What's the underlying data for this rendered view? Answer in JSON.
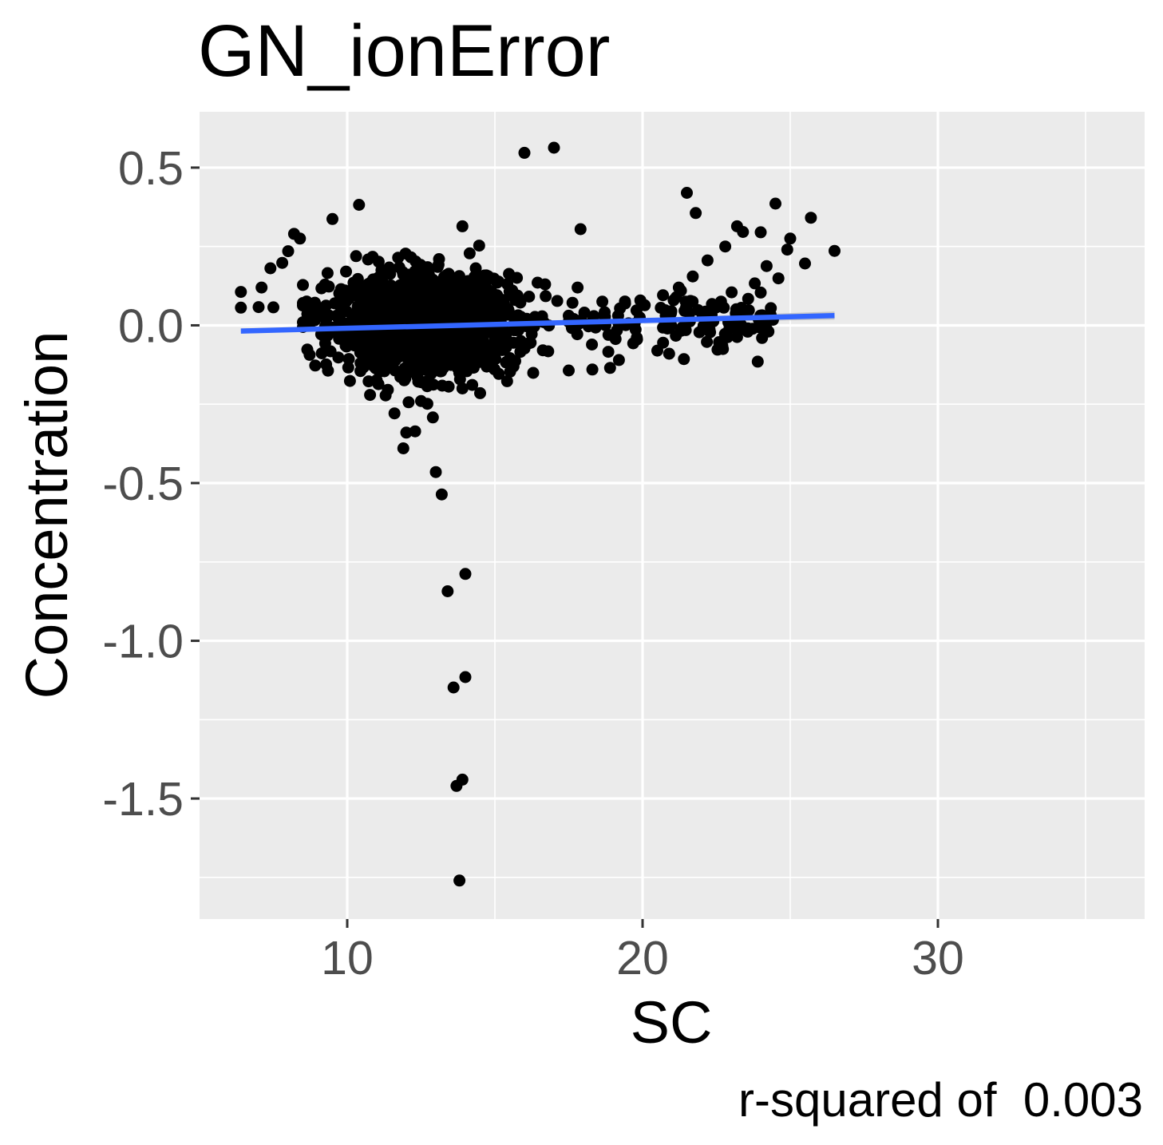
{
  "chart_data": {
    "type": "scatter",
    "title": "GN_ionError",
    "xlabel": "SC",
    "ylabel": "Concentration",
    "caption": "r-squared of  0.003",
    "xlim": [
      5,
      37
    ],
    "ylim": [
      -1.882,
      0.677
    ],
    "x_ticks": [
      10,
      20,
      30
    ],
    "x_tick_labels": [
      "10",
      "20",
      "30"
    ],
    "x_minor_ticks": [
      15,
      25,
      35
    ],
    "y_ticks": [
      0.5,
      0.0,
      -0.5,
      -1.0,
      -1.5
    ],
    "y_tick_labels": [
      "0.5",
      "0.0",
      "-0.5",
      "-1.0",
      "-1.5"
    ],
    "y_minor_ticks": [
      0.25,
      -0.25,
      -0.75,
      -1.25,
      -1.75
    ],
    "grid": true,
    "background": "#ebebeb",
    "point_color": "#000000",
    "fit_color": "#3366ff",
    "band_color": "#bdbdbd",
    "fit_line": {
      "x": [
        6.4,
        26.5
      ],
      "y": [
        -0.018,
        0.031
      ]
    },
    "fit_band_halfwidth": [
      0.008,
      0.004,
      0.013
    ],
    "outlier_points": [
      {
        "x": 16.0,
        "y": 0.547
      },
      {
        "x": 17.0,
        "y": 0.563
      },
      {
        "x": 21.5,
        "y": 0.42
      },
      {
        "x": 21.8,
        "y": 0.356
      },
      {
        "x": 24.5,
        "y": 0.386
      },
      {
        "x": 25.7,
        "y": 0.341
      },
      {
        "x": 26.5,
        "y": 0.236
      },
      {
        "x": 25.0,
        "y": 0.275
      },
      {
        "x": 25.5,
        "y": 0.196
      },
      {
        "x": 24.9,
        "y": 0.24
      },
      {
        "x": 23.2,
        "y": 0.314
      },
      {
        "x": 23.4,
        "y": 0.296
      },
      {
        "x": 24.0,
        "y": 0.295
      },
      {
        "x": 22.8,
        "y": 0.25
      },
      {
        "x": 22.2,
        "y": 0.206
      },
      {
        "x": 24.2,
        "y": 0.188
      },
      {
        "x": 24.6,
        "y": 0.149
      },
      {
        "x": 21.7,
        "y": 0.155
      },
      {
        "x": 23.8,
        "y": 0.133
      },
      {
        "x": 21.3,
        "y": 0.11
      },
      {
        "x": 24.0,
        "y": 0.104
      },
      {
        "x": 17.9,
        "y": 0.305
      },
      {
        "x": 10.4,
        "y": 0.382
      },
      {
        "x": 9.5,
        "y": 0.337
      },
      {
        "x": 13.9,
        "y": 0.314
      },
      {
        "x": 8.2,
        "y": 0.29
      },
      {
        "x": 8.4,
        "y": 0.275
      },
      {
        "x": 6.4,
        "y": 0.106
      },
      {
        "x": 6.4,
        "y": 0.056
      },
      {
        "x": 7.1,
        "y": 0.12
      },
      {
        "x": 7.4,
        "y": 0.181
      },
      {
        "x": 7.8,
        "y": 0.198
      },
      {
        "x": 8.0,
        "y": 0.235
      },
      {
        "x": 7.0,
        "y": 0.058
      },
      {
        "x": 7.5,
        "y": 0.057
      },
      {
        "x": 17.8,
        "y": 0.12
      },
      {
        "x": 16.7,
        "y": 0.13
      },
      {
        "x": 22.7,
        "y": -0.065
      },
      {
        "x": 23.9,
        "y": -0.115
      },
      {
        "x": 21.4,
        "y": -0.107
      },
      {
        "x": 18.3,
        "y": -0.14
      },
      {
        "x": 17.5,
        "y": -0.143
      },
      {
        "x": 18.9,
        "y": -0.135
      },
      {
        "x": 19.2,
        "y": -0.11
      },
      {
        "x": 20.5,
        "y": -0.08
      },
      {
        "x": 20.9,
        "y": -0.09
      },
      {
        "x": 11.3,
        "y": -0.222
      },
      {
        "x": 11.6,
        "y": -0.279
      },
      {
        "x": 12.3,
        "y": -0.336
      },
      {
        "x": 12.0,
        "y": -0.34
      },
      {
        "x": 11.9,
        "y": -0.39
      },
      {
        "x": 13.9,
        "y": -0.2
      },
      {
        "x": 14.5,
        "y": -0.215
      },
      {
        "x": 12.9,
        "y": -0.292
      },
      {
        "x": 12.5,
        "y": -0.24
      },
      {
        "x": 13.0,
        "y": -0.465
      },
      {
        "x": 13.2,
        "y": -0.536
      },
      {
        "x": 14.0,
        "y": -0.788
      },
      {
        "x": 13.4,
        "y": -0.843
      },
      {
        "x": 14.0,
        "y": -1.115
      },
      {
        "x": 13.6,
        "y": -1.148
      },
      {
        "x": 13.9,
        "y": -1.44
      },
      {
        "x": 13.7,
        "y": -1.46
      },
      {
        "x": 13.8,
        "y": -1.76
      }
    ],
    "dense_cluster": {
      "x_center": 12.6,
      "x_spread": 1.55,
      "x_range": [
        8.5,
        17.5
      ],
      "y_center": 0.005,
      "y_spread": 0.075,
      "y_range": [
        -0.25,
        0.28
      ],
      "count": 1500
    },
    "tail_cluster": {
      "x_range": [
        17.5,
        24.5
      ],
      "y_center": 0.015,
      "y_spread": 0.045,
      "y_range": [
        -0.12,
        0.12
      ],
      "count": 120
    }
  }
}
